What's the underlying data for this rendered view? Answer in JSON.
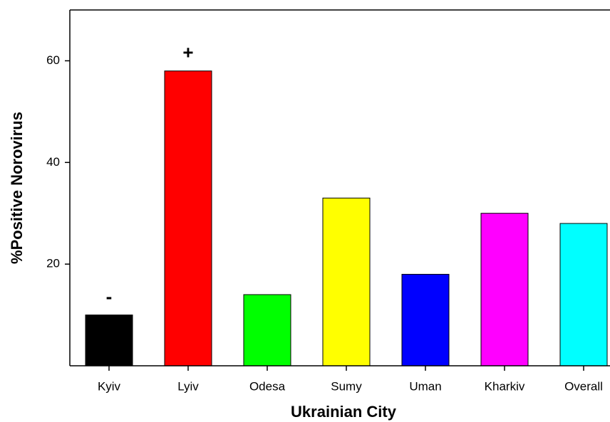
{
  "chart_data": {
    "type": "bar",
    "xlabel": "Ukrainian City",
    "ylabel": "%Positive Norovirus",
    "categories": [
      "Kyiv",
      "Lyiv",
      "Odesa",
      "Sumy",
      "Uman",
      "Kharkiv",
      "Overall"
    ],
    "values": [
      10,
      58,
      14,
      33,
      18,
      30,
      28
    ],
    "colors": [
      "#000000",
      "#ff0000",
      "#00ff00",
      "#ffff00",
      "#0000ff",
      "#ff00ff",
      "#00ffff"
    ],
    "value_annotations": [
      "-",
      "+",
      null,
      null,
      null,
      null,
      null
    ],
    "ylim": [
      0,
      70
    ],
    "yticks": [
      20,
      40,
      60
    ],
    "grid": false
  }
}
